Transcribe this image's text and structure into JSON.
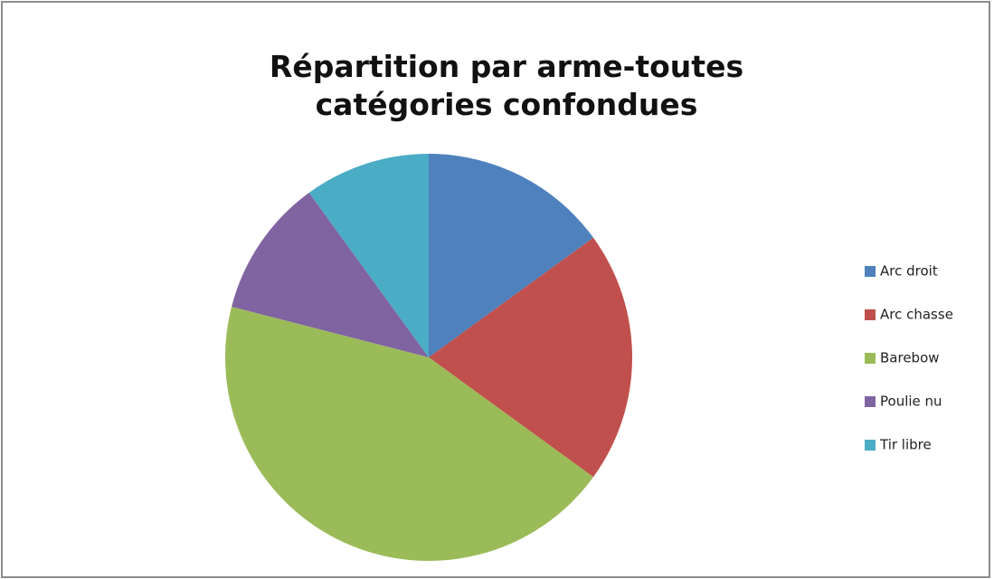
{
  "chart_data": {
    "type": "pie",
    "title": "Répartition par arme-toutes catégories confondues",
    "categories": [
      "Arc droit",
      "Arc chasse",
      "Barebow",
      "Poulie nu",
      "Tir libre"
    ],
    "values": [
      15,
      20,
      44,
      11,
      10
    ],
    "colors": [
      "#4f81bd",
      "#c0504d",
      "#9bbb59",
      "#8064a2",
      "#4bacc6"
    ],
    "legend": "right"
  }
}
